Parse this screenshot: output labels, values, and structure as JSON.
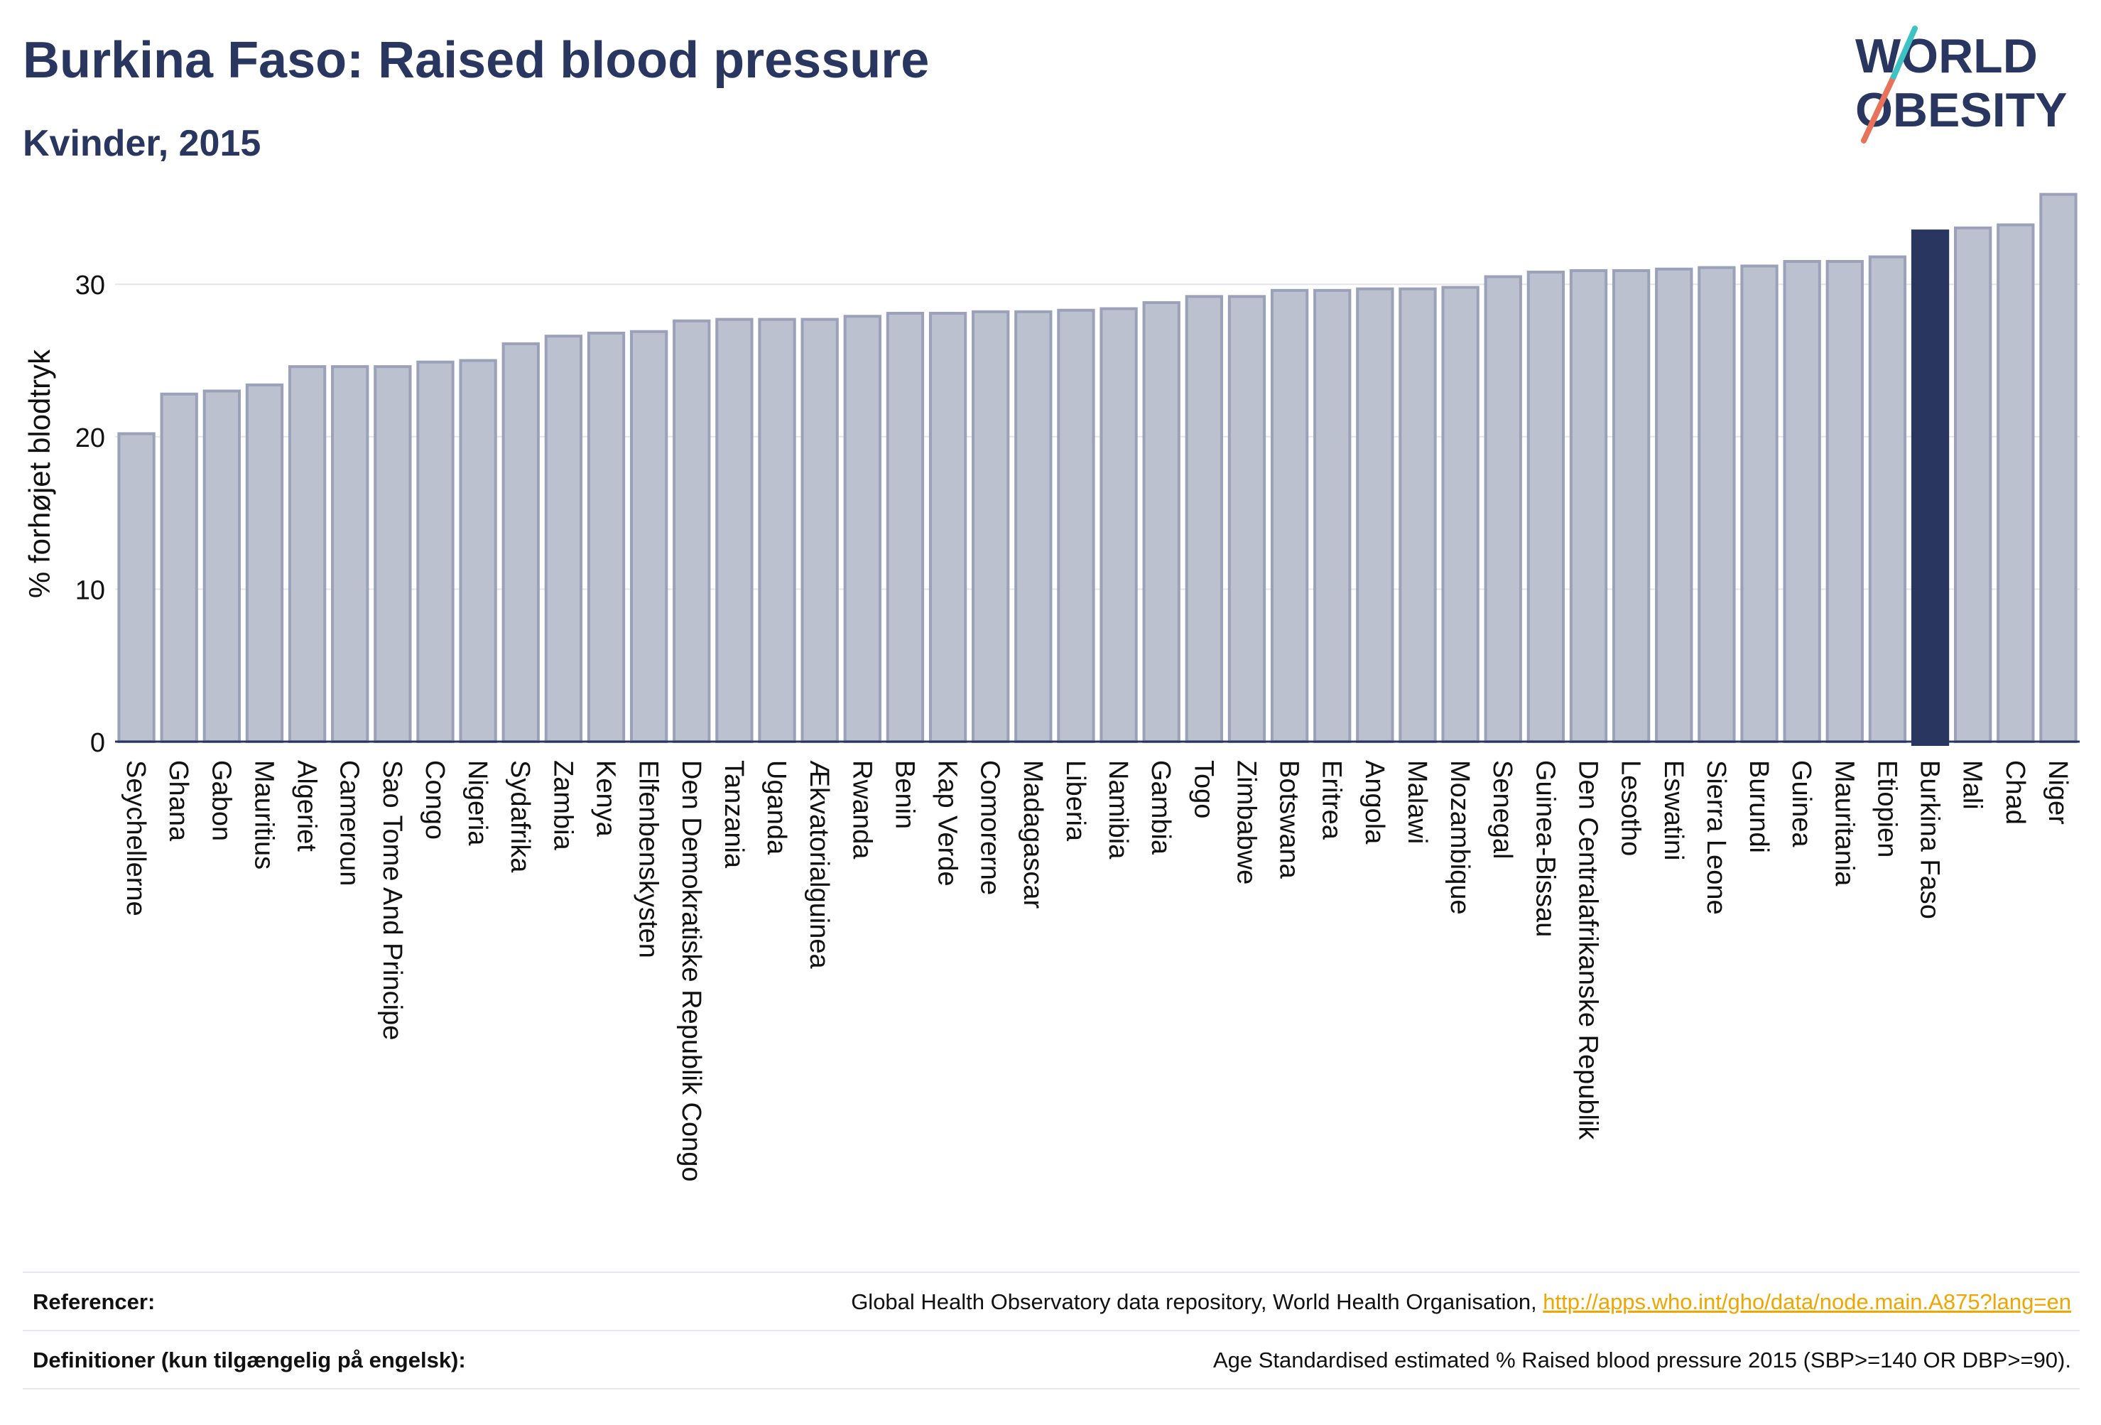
{
  "header": {
    "title": "Burkina Faso: Raised blood pressure",
    "subtitle": "Kvinder, 2015",
    "logo_text": "WORLD OBESITY"
  },
  "colors": {
    "bar": "#bcc1cf",
    "bar_stroke": "#9aa1b8",
    "highlight": "#283660",
    "logo_slash_red": "#e8735a",
    "logo_slash_teal": "#3fc2c4",
    "link": "#f0a500"
  },
  "chart_data": {
    "type": "bar",
    "title": "Burkina Faso: Raised blood pressure",
    "subtitle": "Kvinder, 2015",
    "xlabel": "",
    "ylabel": "% forhøjet blodtryk",
    "ylim": [
      0,
      37
    ],
    "yticks": [
      0,
      10,
      20,
      30
    ],
    "grid": true,
    "highlight": "Burkina Faso",
    "categories": [
      "Seychellerne",
      "Ghana",
      "Gabon",
      "Mauritius",
      "Algeriet",
      "Cameroun",
      "Sao Tome And Principe",
      "Congo",
      "Nigeria",
      "Sydafrika",
      "Zambia",
      "Kenya",
      "Elfenbenskysten",
      "Den Demokratiske Republik Congo",
      "Tanzania",
      "Uganda",
      "Ækvatorialguinea",
      "Rwanda",
      "Benin",
      "Kap Verde",
      "Comorerne",
      "Madagascar",
      "Liberia",
      "Namibia",
      "Gambia",
      "Togo",
      "Zimbabwe",
      "Botswana",
      "Eritrea",
      "Angola",
      "Malawi",
      "Mozambique",
      "Senegal",
      "Guinea-Bissau",
      "Den Centralafrikanske Republik",
      "Lesotho",
      "Eswatini",
      "Sierra Leone",
      "Burundi",
      "Guinea",
      "Mauritania",
      "Etiopien",
      "Burkina Faso",
      "Mali",
      "Chad",
      "Niger"
    ],
    "values": [
      20.2,
      22.8,
      23.0,
      23.4,
      24.6,
      24.6,
      24.6,
      24.9,
      25.0,
      26.1,
      26.6,
      26.8,
      26.9,
      27.6,
      27.7,
      27.7,
      27.7,
      27.9,
      28.1,
      28.1,
      28.2,
      28.2,
      28.3,
      28.4,
      28.8,
      29.2,
      29.2,
      29.6,
      29.6,
      29.7,
      29.7,
      29.8,
      30.5,
      30.8,
      30.9,
      30.9,
      31.0,
      31.1,
      31.2,
      31.5,
      31.5,
      31.8,
      33.5,
      33.7,
      33.9,
      35.9
    ]
  },
  "footer": {
    "references_label": "Referencer:",
    "references_text": "Global Health Observatory data repository, World Health Organisation, ",
    "references_link": "http://apps.who.int/gho/data/node.main.A875?lang=en",
    "definitions_label": "Definitioner (kun tilgængelig på engelsk):",
    "definitions_text": "Age Standardised estimated % Raised blood pressure 2015 (SBP>=140 OR DBP>=90)."
  }
}
